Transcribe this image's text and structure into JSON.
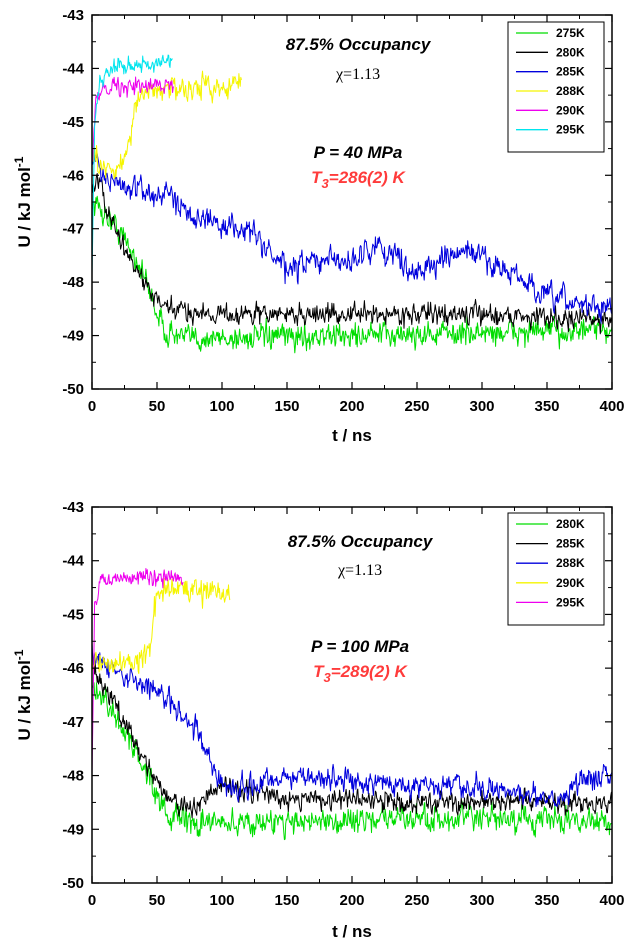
{
  "chart_data": [
    {
      "type": "line",
      "xlabel": "t / ns",
      "ylabel": "U / kJ mol",
      "ylabel_sup": "-1",
      "xlim": [
        0,
        400
      ],
      "ylim": [
        -50,
        -43
      ],
      "xticks": [
        "0",
        "50",
        "100",
        "150",
        "200",
        "250",
        "300",
        "350",
        "400"
      ],
      "yticks": [
        "-50",
        "-49",
        "-48",
        "-47",
        "-46",
        "-45",
        "-44",
        "-43"
      ],
      "annotations": {
        "occupancy": "87.5% Occupancy",
        "chi": "χ=1.13",
        "pressure": "P = 40 MPa",
        "t3_sub": "3",
        "t3_value": "=286(2) K"
      },
      "legend_position": "top-right",
      "series": [
        {
          "name": "275K",
          "color": "#00dd00",
          "noise": 0.22,
          "points": [
            [
              0,
              -46.5
            ],
            [
              5,
              -46.6
            ],
            [
              20,
              -47.0
            ],
            [
              35,
              -47.6
            ],
            [
              45,
              -48.2
            ],
            [
              55,
              -48.9
            ],
            [
              70,
              -49.05
            ],
            [
              100,
              -49.05
            ],
            [
              200,
              -49.0
            ],
            [
              300,
              -48.95
            ],
            [
              400,
              -48.9
            ]
          ]
        },
        {
          "name": "280K",
          "color": "#000000",
          "noise": 0.18,
          "points": [
            [
              0,
              -46.2
            ],
            [
              5,
              -46.1
            ],
            [
              15,
              -46.9
            ],
            [
              30,
              -47.6
            ],
            [
              45,
              -48.2
            ],
            [
              55,
              -48.5
            ],
            [
              100,
              -48.6
            ],
            [
              200,
              -48.6
            ],
            [
              300,
              -48.6
            ],
            [
              400,
              -48.7
            ]
          ]
        },
        {
          "name": "285K",
          "color": "#0000dd",
          "noise": 0.22,
          "points": [
            [
              0,
              -45.5
            ],
            [
              10,
              -46.1
            ],
            [
              40,
              -46.3
            ],
            [
              60,
              -46.4
            ],
            [
              90,
              -46.9
            ],
            [
              120,
              -47.0
            ],
            [
              150,
              -47.8
            ],
            [
              170,
              -47.6
            ],
            [
              200,
              -47.6
            ],
            [
              220,
              -47.3
            ],
            [
              250,
              -47.8
            ],
            [
              290,
              -47.4
            ],
            [
              320,
              -47.8
            ],
            [
              350,
              -48.3
            ],
            [
              400,
              -48.5
            ]
          ]
        },
        {
          "name": "288K",
          "color": "#f5f500",
          "noise": 0.2,
          "points": [
            [
              0,
              -45.6
            ],
            [
              10,
              -45.9
            ],
            [
              20,
              -45.9
            ],
            [
              30,
              -45.2
            ],
            [
              35,
              -44.6
            ],
            [
              45,
              -44.4
            ],
            [
              80,
              -44.35
            ],
            [
              115,
              -44.3
            ]
          ]
        },
        {
          "name": "290K",
          "color": "#ee00ee",
          "noise": 0.15,
          "points": [
            [
              0,
              -45.8
            ],
            [
              3,
              -44.6
            ],
            [
              8,
              -44.3
            ],
            [
              30,
              -44.35
            ],
            [
              60,
              -44.3
            ],
            [
              63,
              -44.3
            ]
          ]
        },
        {
          "name": "295K",
          "color": "#00e5ee",
          "noise": 0.15,
          "points": [
            [
              0,
              -48.0
            ],
            [
              2,
              -45.0
            ],
            [
              6,
              -44.2
            ],
            [
              20,
              -43.9
            ],
            [
              40,
              -43.95
            ],
            [
              62,
              -43.9
            ]
          ]
        }
      ]
    },
    {
      "type": "line",
      "xlabel": "t / ns",
      "ylabel": "U / kJ mol",
      "ylabel_sup": "-1",
      "xlim": [
        0,
        400
      ],
      "ylim": [
        -50,
        -43
      ],
      "xticks": [
        "0",
        "50",
        "100",
        "150",
        "200",
        "250",
        "300",
        "350",
        "400"
      ],
      "yticks": [
        "-50",
        "-49",
        "-48",
        "-47",
        "-46",
        "-45",
        "-44",
        "-43"
      ],
      "annotations": {
        "occupancy": "87.5% Occupancy",
        "chi": "χ=1.13",
        "pressure": "P = 100 MPa",
        "t3_sub": "3",
        "t3_value": "=289(2) K"
      },
      "legend_position": "top-right",
      "series": [
        {
          "name": "280K",
          "color": "#00dd00",
          "noise": 0.22,
          "points": [
            [
              0,
              -46.4
            ],
            [
              10,
              -46.6
            ],
            [
              30,
              -47.4
            ],
            [
              50,
              -48.3
            ],
            [
              60,
              -48.8
            ],
            [
              80,
              -48.9
            ],
            [
              150,
              -48.85
            ],
            [
              250,
              -48.8
            ],
            [
              400,
              -48.85
            ]
          ]
        },
        {
          "name": "285K",
          "color": "#000000",
          "noise": 0.18,
          "points": [
            [
              0,
              -45.9
            ],
            [
              10,
              -46.4
            ],
            [
              30,
              -47.2
            ],
            [
              45,
              -47.9
            ],
            [
              55,
              -48.3
            ],
            [
              70,
              -48.6
            ],
            [
              85,
              -48.5
            ],
            [
              100,
              -48.2
            ],
            [
              150,
              -48.4
            ],
            [
              250,
              -48.5
            ],
            [
              400,
              -48.5
            ]
          ]
        },
        {
          "name": "288K",
          "color": "#0000dd",
          "noise": 0.2,
          "points": [
            [
              0,
              -45.7
            ],
            [
              10,
              -46.0
            ],
            [
              40,
              -46.3
            ],
            [
              60,
              -46.6
            ],
            [
              80,
              -47.1
            ],
            [
              95,
              -48.0
            ],
            [
              110,
              -48.3
            ],
            [
              150,
              -48.0
            ],
            [
              200,
              -48.1
            ],
            [
              260,
              -48.2
            ],
            [
              320,
              -48.3
            ],
            [
              360,
              -48.4
            ],
            [
              380,
              -48.0
            ],
            [
              400,
              -48.0
            ]
          ]
        },
        {
          "name": "290K",
          "color": "#f5f500",
          "noise": 0.2,
          "points": [
            [
              0,
              -45.9
            ],
            [
              20,
              -45.9
            ],
            [
              40,
              -45.8
            ],
            [
              45,
              -45.5
            ],
            [
              50,
              -44.6
            ],
            [
              70,
              -44.5
            ],
            [
              106,
              -44.6
            ]
          ]
        },
        {
          "name": "295K",
          "color": "#ee00ee",
          "noise": 0.15,
          "points": [
            [
              0,
              -48.0
            ],
            [
              2,
              -44.8
            ],
            [
              6,
              -44.4
            ],
            [
              30,
              -44.3
            ],
            [
              70,
              -44.35
            ]
          ]
        }
      ]
    }
  ]
}
